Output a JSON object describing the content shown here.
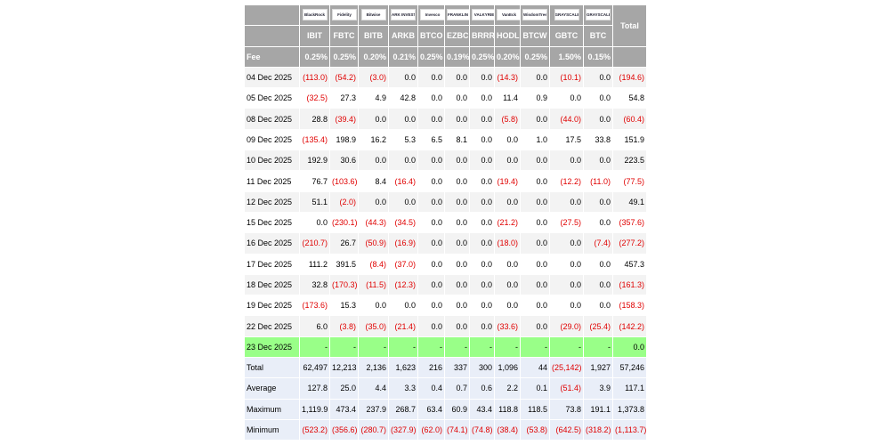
{
  "header": {
    "logos": [
      "BlackRock",
      "Fidelity",
      "Bitwise",
      "ARK INVEST",
      "Invesco",
      "FRANKLIN TEMPLETON",
      "VALKYRIE",
      "VanEck",
      "WisdomTree",
      "GRAYSCALE",
      "GRAYSCALE"
    ],
    "total": "Total",
    "tickers": [
      "IBIT",
      "FBTC",
      "BITB",
      "ARKB",
      "BTCO",
      "EZBC",
      "BRRR",
      "HODL",
      "BTCW",
      "GBTC",
      "BTC"
    ]
  },
  "fee": {
    "label": "Fee",
    "values": [
      "0.25%",
      "0.25%",
      "0.20%",
      "0.21%",
      "0.25%",
      "0.19%",
      "0.25%",
      "0.20%",
      "0.25%",
      "1.50%",
      "0.15%"
    ]
  },
  "rows": [
    {
      "date": "04 Dec 2025",
      "cells": [
        "(113.0)",
        "(54.2)",
        "(3.0)",
        "0.0",
        "0.0",
        "0.0",
        "0.0",
        "(14.3)",
        "0.0",
        "(10.1)",
        "0.0",
        "(194.6)"
      ]
    },
    {
      "date": "05 Dec 2025",
      "cells": [
        "(32.5)",
        "27.3",
        "4.9",
        "42.8",
        "0.0",
        "0.0",
        "0.0",
        "11.4",
        "0.9",
        "0.0",
        "0.0",
        "54.8"
      ]
    },
    {
      "date": "08 Dec 2025",
      "cells": [
        "28.8",
        "(39.4)",
        "0.0",
        "0.0",
        "0.0",
        "0.0",
        "0.0",
        "(5.8)",
        "0.0",
        "(44.0)",
        "0.0",
        "(60.4)"
      ]
    },
    {
      "date": "09 Dec 2025",
      "cells": [
        "(135.4)",
        "198.9",
        "16.2",
        "5.3",
        "6.5",
        "8.1",
        "0.0",
        "0.0",
        "1.0",
        "17.5",
        "33.8",
        "151.9"
      ]
    },
    {
      "date": "10 Dec 2025",
      "cells": [
        "192.9",
        "30.6",
        "0.0",
        "0.0",
        "0.0",
        "0.0",
        "0.0",
        "0.0",
        "0.0",
        "0.0",
        "0.0",
        "223.5"
      ]
    },
    {
      "date": "11 Dec 2025",
      "cells": [
        "76.7",
        "(103.6)",
        "8.4",
        "(16.4)",
        "0.0",
        "0.0",
        "0.0",
        "(19.4)",
        "0.0",
        "(12.2)",
        "(11.0)",
        "(77.5)"
      ]
    },
    {
      "date": "12 Dec 2025",
      "cells": [
        "51.1",
        "(2.0)",
        "0.0",
        "0.0",
        "0.0",
        "0.0",
        "0.0",
        "0.0",
        "0.0",
        "0.0",
        "0.0",
        "49.1"
      ]
    },
    {
      "date": "15 Dec 2025",
      "cells": [
        "0.0",
        "(230.1)",
        "(44.3)",
        "(34.5)",
        "0.0",
        "0.0",
        "0.0",
        "(21.2)",
        "0.0",
        "(27.5)",
        "0.0",
        "(357.6)"
      ]
    },
    {
      "date": "16 Dec 2025",
      "cells": [
        "(210.7)",
        "26.7",
        "(50.9)",
        "(16.9)",
        "0.0",
        "0.0",
        "0.0",
        "(18.0)",
        "0.0",
        "0.0",
        "(7.4)",
        "(277.2)"
      ]
    },
    {
      "date": "17 Dec 2025",
      "cells": [
        "111.2",
        "391.5",
        "(8.4)",
        "(37.0)",
        "0.0",
        "0.0",
        "0.0",
        "0.0",
        "0.0",
        "0.0",
        "0.0",
        "457.3"
      ]
    },
    {
      "date": "18 Dec 2025",
      "cells": [
        "32.8",
        "(170.3)",
        "(11.5)",
        "(12.3)",
        "0.0",
        "0.0",
        "0.0",
        "0.0",
        "0.0",
        "0.0",
        "0.0",
        "(161.3)"
      ]
    },
    {
      "date": "19 Dec 2025",
      "cells": [
        "(173.6)",
        "15.3",
        "0.0",
        "0.0",
        "0.0",
        "0.0",
        "0.0",
        "0.0",
        "0.0",
        "0.0",
        "0.0",
        "(158.3)"
      ]
    },
    {
      "date": "22 Dec 2025",
      "cells": [
        "6.0",
        "(3.8)",
        "(35.0)",
        "(21.4)",
        "0.0",
        "0.0",
        "0.0",
        "(33.6)",
        "0.0",
        "(29.0)",
        "(25.4)",
        "(142.2)"
      ]
    },
    {
      "date": "23 Dec 2025",
      "cells": [
        "-",
        "-",
        "-",
        "-",
        "-",
        "-",
        "-",
        "-",
        "-",
        "-",
        "-",
        "0.0"
      ]
    }
  ],
  "summary": [
    {
      "label": "Total",
      "cells": [
        "62,497",
        "12,213",
        "2,136",
        "1,623",
        "216",
        "337",
        "300",
        "1,096",
        "44",
        "(25,142)",
        "1,927",
        "57,246"
      ]
    },
    {
      "label": "Average",
      "cells": [
        "127.8",
        "25.0",
        "4.4",
        "3.3",
        "0.4",
        "0.7",
        "0.6",
        "2.2",
        "0.1",
        "(51.4)",
        "3.9",
        "117.1"
      ]
    },
    {
      "label": "Maximum",
      "cells": [
        "1,119.9",
        "473.4",
        "237.9",
        "268.7",
        "63.4",
        "60.9",
        "43.4",
        "118.8",
        "118.5",
        "73.8",
        "191.1",
        "1,373.8"
      ]
    },
    {
      "label": "Minimum",
      "cells": [
        "(523.2)",
        "(356.6)",
        "(280.7)",
        "(327.9)",
        "(62.0)",
        "(74.1)",
        "(74.8)",
        "(38.4)",
        "(53.8)",
        "(642.5)",
        "(318.2)",
        "(1,113.7)"
      ]
    }
  ]
}
